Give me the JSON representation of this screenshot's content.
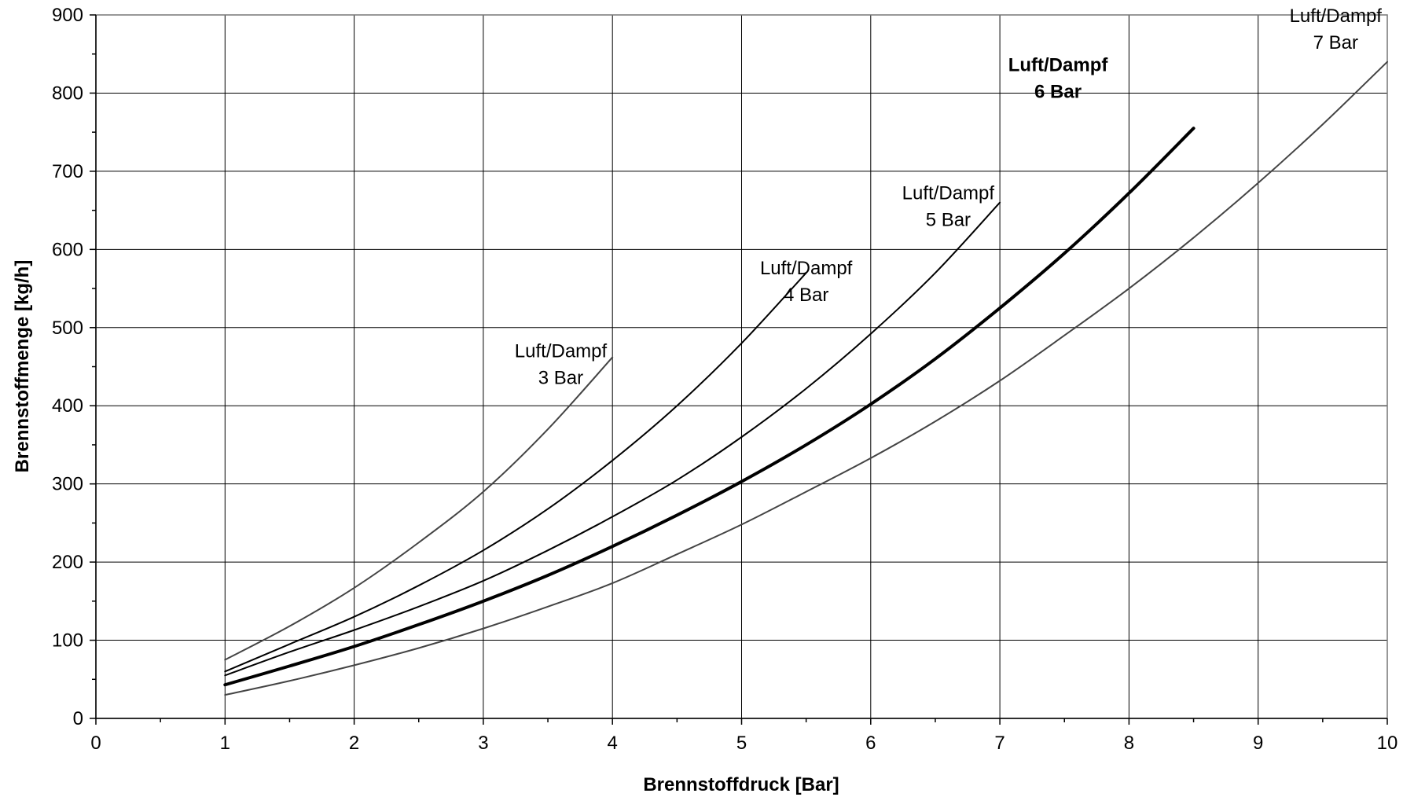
{
  "chart_data": {
    "type": "line",
    "xlabel": "Brennstoffdruck [Bar]",
    "ylabel": "Brennstoffmenge [kg/h]",
    "xlim": [
      0,
      10
    ],
    "ylim": [
      0,
      900
    ],
    "xticks": [
      0,
      1,
      2,
      3,
      4,
      5,
      6,
      7,
      8,
      9,
      10
    ],
    "yticks": [
      0,
      100,
      200,
      300,
      400,
      500,
      600,
      700,
      800,
      900
    ],
    "grid": true,
    "legend": "none",
    "series": [
      {
        "name_line1": "Luft/Dampf",
        "name_line2": "3 Bar",
        "color": "#444444",
        "bold": false,
        "x": [
          1,
          1.5,
          2,
          2.5,
          3,
          3.5,
          4
        ],
        "y": [
          75,
          118,
          167,
          225,
          290,
          370,
          462
        ]
      },
      {
        "name_line1": "Luft/Dampf",
        "name_line2": "4 Bar",
        "color": "#000000",
        "bold": false,
        "x": [
          1,
          1.5,
          2,
          2.5,
          3,
          3.5,
          4,
          4.5,
          5,
          5.5
        ],
        "y": [
          60,
          95,
          130,
          170,
          215,
          268,
          330,
          400,
          480,
          570
        ]
      },
      {
        "name_line1": "Luft/Dampf",
        "name_line2": "5 Bar",
        "color": "#000000",
        "bold": false,
        "x": [
          1,
          1.5,
          2,
          2.5,
          3,
          3.5,
          4,
          4.5,
          5,
          5.5,
          6,
          6.5,
          7
        ],
        "y": [
          55,
          85,
          113,
          143,
          176,
          215,
          258,
          305,
          360,
          422,
          492,
          570,
          660
        ]
      },
      {
        "name_line1": "Luft/Dampf",
        "name_line2": "6 Bar",
        "color": "#000000",
        "bold": true,
        "x": [
          1,
          1.5,
          2,
          2.5,
          3,
          3.5,
          4,
          4.5,
          5,
          5.5,
          6,
          6.5,
          7,
          7.5,
          8,
          8.5
        ],
        "y": [
          43,
          67,
          92,
          120,
          150,
          183,
          220,
          260,
          303,
          350,
          402,
          460,
          525,
          595,
          672,
          755
        ]
      },
      {
        "name_line1": "Luft/Dampf",
        "name_line2": "7 Bar",
        "color": "#444444",
        "bold": false,
        "x": [
          1,
          1.5,
          2,
          2.5,
          3,
          3.5,
          4,
          4.5,
          5,
          5.5,
          6,
          6.5,
          7,
          7.5,
          8,
          8.5,
          9,
          9.5,
          10
        ],
        "y": [
          30,
          48,
          68,
          90,
          115,
          143,
          173,
          210,
          248,
          290,
          333,
          380,
          432,
          490,
          550,
          615,
          685,
          760,
          840
        ]
      }
    ]
  }
}
